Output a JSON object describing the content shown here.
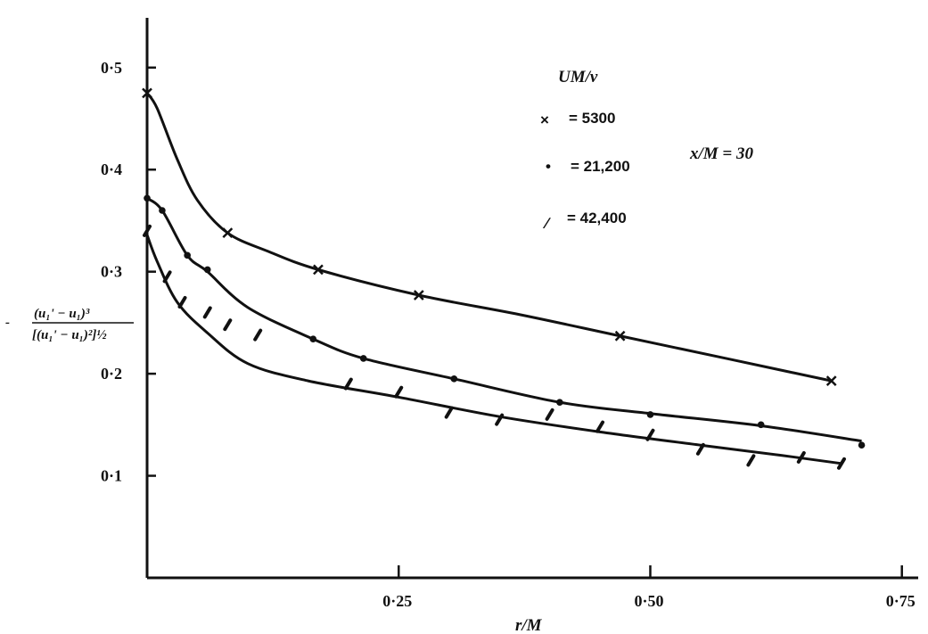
{
  "chart_data": {
    "type": "scatter",
    "xlabel": "r/M",
    "ylabel": {
      "sign": "-",
      "numerator": "(u₁' − u₁)³",
      "denominator": "[(u₁' − u₁)²]½"
    },
    "x_ticks": [
      "0·25",
      "0·50",
      "0·75"
    ],
    "x_tick_values": [
      0.25,
      0.5,
      0.75
    ],
    "y_ticks": [
      "0·1",
      "0·2",
      "0·3",
      "0·4",
      "0·5"
    ],
    "y_tick_values": [
      0.1,
      0.2,
      0.3,
      0.4,
      0.5
    ],
    "xlim": [
      0,
      0.76
    ],
    "ylim": [
      0,
      0.54
    ],
    "grid": false,
    "legend": {
      "title": "UM/ν",
      "position": "top-center",
      "annotation": "x/M = 30",
      "entries": [
        {
          "marker": "×",
          "label": "= 5300"
        },
        {
          "marker": "•",
          "label": "= 21,200"
        },
        {
          "marker": "∕",
          "label": "= 42,400"
        }
      ]
    },
    "series": [
      {
        "name": "= 5300",
        "marker": "cross",
        "points": [
          [
            0.0,
            0.475
          ],
          [
            0.08,
            0.338
          ],
          [
            0.17,
            0.302
          ],
          [
            0.27,
            0.277
          ],
          [
            0.47,
            0.237
          ],
          [
            0.68,
            0.193
          ]
        ],
        "curve": [
          [
            0.0,
            0.475
          ],
          [
            0.01,
            0.46
          ],
          [
            0.03,
            0.41
          ],
          [
            0.05,
            0.37
          ],
          [
            0.08,
            0.338
          ],
          [
            0.12,
            0.32
          ],
          [
            0.17,
            0.302
          ],
          [
            0.27,
            0.277
          ],
          [
            0.37,
            0.258
          ],
          [
            0.47,
            0.237
          ],
          [
            0.58,
            0.214
          ],
          [
            0.68,
            0.193
          ]
        ]
      },
      {
        "name": "= 21,200",
        "marker": "dot",
        "points": [
          [
            0.0,
            0.372
          ],
          [
            0.015,
            0.36
          ],
          [
            0.04,
            0.316
          ],
          [
            0.06,
            0.302
          ],
          [
            0.165,
            0.234
          ],
          [
            0.215,
            0.215
          ],
          [
            0.305,
            0.195
          ],
          [
            0.41,
            0.172
          ],
          [
            0.5,
            0.16
          ],
          [
            0.61,
            0.15
          ],
          [
            0.71,
            0.13
          ]
        ],
        "curve": [
          [
            0.0,
            0.372
          ],
          [
            0.015,
            0.36
          ],
          [
            0.04,
            0.316
          ],
          [
            0.06,
            0.3
          ],
          [
            0.1,
            0.265
          ],
          [
            0.165,
            0.234
          ],
          [
            0.215,
            0.215
          ],
          [
            0.305,
            0.195
          ],
          [
            0.41,
            0.172
          ],
          [
            0.5,
            0.161
          ],
          [
            0.61,
            0.149
          ],
          [
            0.71,
            0.134
          ]
        ]
      },
      {
        "name": "= 42,400",
        "marker": "slash",
        "points": [
          [
            0.0,
            0.34
          ],
          [
            0.02,
            0.295
          ],
          [
            0.035,
            0.27
          ],
          [
            0.06,
            0.26
          ],
          [
            0.08,
            0.248
          ],
          [
            0.11,
            0.238
          ],
          [
            0.2,
            0.19
          ],
          [
            0.25,
            0.182
          ],
          [
            0.3,
            0.162
          ],
          [
            0.35,
            0.155
          ],
          [
            0.4,
            0.16
          ],
          [
            0.45,
            0.148
          ],
          [
            0.5,
            0.14
          ],
          [
            0.55,
            0.126
          ],
          [
            0.6,
            0.115
          ],
          [
            0.65,
            0.118
          ],
          [
            0.69,
            0.112
          ]
        ],
        "curve": [
          [
            0.0,
            0.336
          ],
          [
            0.01,
            0.31
          ],
          [
            0.03,
            0.27
          ],
          [
            0.06,
            0.24
          ],
          [
            0.1,
            0.21
          ],
          [
            0.16,
            0.193
          ],
          [
            0.25,
            0.177
          ],
          [
            0.35,
            0.158
          ],
          [
            0.45,
            0.143
          ],
          [
            0.55,
            0.13
          ],
          [
            0.63,
            0.12
          ],
          [
            0.69,
            0.112
          ]
        ]
      }
    ]
  }
}
